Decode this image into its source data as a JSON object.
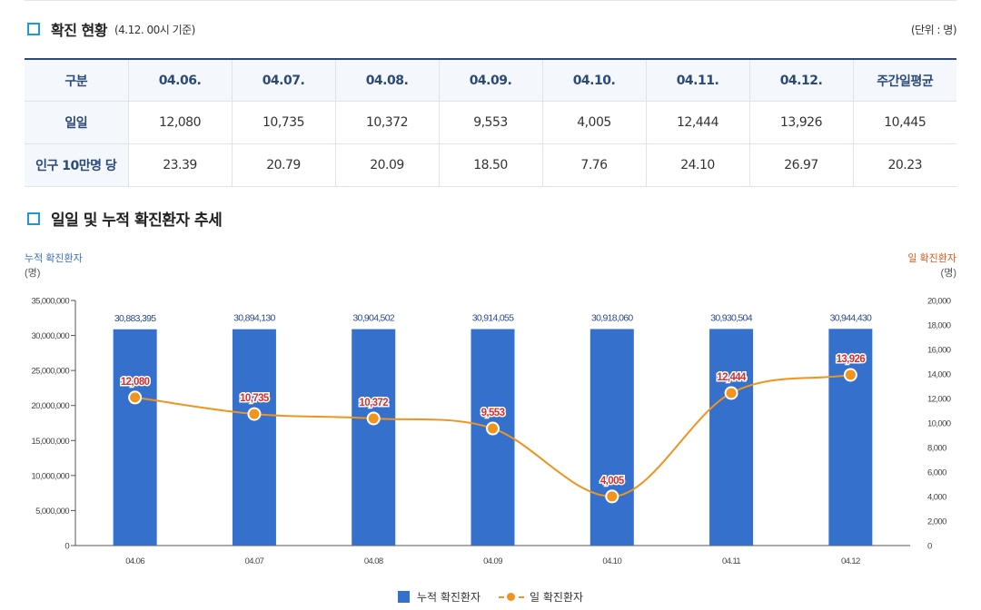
{
  "section1": {
    "title": "확진 현황",
    "basis": "(4.12. 00시 기준)",
    "unit": "(단위 : 명)"
  },
  "table": {
    "headers": [
      "구분",
      "04.06.",
      "04.07.",
      "04.08.",
      "04.09.",
      "04.10.",
      "04.11.",
      "04.12.",
      "주간일평균"
    ],
    "rows": [
      {
        "label": "일일",
        "cells": [
          "12,080",
          "10,735",
          "10,372",
          "9,553",
          "4,005",
          "12,444",
          "13,926",
          "10,445"
        ]
      },
      {
        "label": "인구 10만명 당",
        "cells": [
          "23.39",
          "20.79",
          "20.09",
          "18.50",
          "7.76",
          "24.10",
          "26.97",
          "20.23"
        ]
      }
    ]
  },
  "section2": {
    "title": "일일 및 누적 확진환자 추세"
  },
  "chart_data": {
    "type": "bar",
    "title": "일일 및 누적 확진환자 추세",
    "categories": [
      "04.06",
      "04.07",
      "04.08",
      "04.09",
      "04.10",
      "04.11",
      "04.12"
    ],
    "series": [
      {
        "name": "누적 확진환자",
        "type": "bar",
        "axis": "left",
        "values": [
          30883395,
          30894130,
          30904502,
          30914055,
          30918060,
          30930504,
          30944430
        ],
        "labels": [
          "30,883,395",
          "30,894,130",
          "30,904,502",
          "30,914,055",
          "30,918,060",
          "30,930,504",
          "30,944,430"
        ]
      },
      {
        "name": "일 확진환자",
        "type": "line",
        "axis": "right",
        "values": [
          12080,
          10735,
          10372,
          9553,
          4005,
          12444,
          13926
        ],
        "labels": [
          "12,080",
          "10,735",
          "10,372",
          "9,553",
          "4,005",
          "12,444",
          "13,926"
        ]
      }
    ],
    "left_axis": {
      "label": "누적 확진환자",
      "unit": "(명)",
      "ylim": [
        0,
        35000000
      ],
      "ticks": [
        0,
        5000000,
        10000000,
        15000000,
        20000000,
        25000000,
        30000000,
        35000000
      ],
      "tick_labels": [
        "0",
        "5,000,000",
        "10,000,000",
        "15,000,000",
        "20,000,000",
        "25,000,000",
        "30,000,000",
        "35,000,000"
      ]
    },
    "right_axis": {
      "label": "일 확진환자",
      "unit": "(명)",
      "ylim": [
        0,
        20000
      ],
      "ticks": [
        0,
        2000,
        4000,
        6000,
        8000,
        10000,
        12000,
        14000,
        16000,
        18000,
        20000
      ],
      "tick_labels": [
        "0",
        "2,000",
        "4,000",
        "6,000",
        "8,000",
        "10,000",
        "12,000",
        "14,000",
        "16,000",
        "18,000",
        "20,000"
      ]
    },
    "legend": [
      "누적 확진환자",
      "일 확진환자"
    ],
    "legend_position": "bottom",
    "colors": {
      "bar": "#3470cc",
      "line": "#f0941e",
      "line_label": "#d03030",
      "left_axis_label": "#3a6fb8",
      "right_axis_label": "#d55a1e"
    }
  }
}
